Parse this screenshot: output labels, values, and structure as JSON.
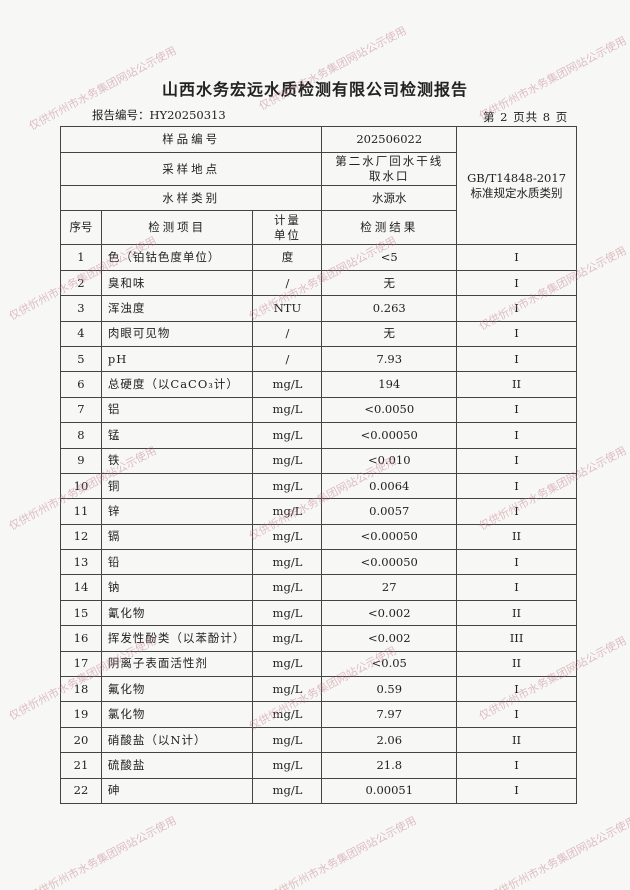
{
  "header": {
    "title": "山西水务宏远水质检测有限公司检测报告",
    "report_no": "报告编号：HY20250313",
    "page_info": "第 2 页共 8 页"
  },
  "table": {
    "sample_no_label": "样品编号",
    "sample_no": "202506022",
    "location_label": "采样地点",
    "location": "第二水厂回水干线取水口",
    "type_label": "水样类别",
    "type": "水源水",
    "standard": "GB/T14848-2017 标准规定水质类别",
    "col_no": "序号",
    "col_item": "检测项目",
    "col_unit": "计量单位",
    "col_result": "检测结果",
    "rows": [
      {
        "no": "1",
        "item": "色（铂钴色度单位）",
        "unit": "度",
        "result": "<5",
        "class": "I"
      },
      {
        "no": "2",
        "item": "臭和味",
        "unit": "/",
        "result": "无",
        "class": "I"
      },
      {
        "no": "3",
        "item": "浑浊度",
        "unit": "NTU",
        "result": "0.263",
        "class": "I"
      },
      {
        "no": "4",
        "item": "肉眼可见物",
        "unit": "/",
        "result": "无",
        "class": "I"
      },
      {
        "no": "5",
        "item": "pH",
        "unit": "/",
        "result": "7.93",
        "class": "I"
      },
      {
        "no": "6",
        "item": "总硬度（以CaCO₃计）",
        "unit": "mg/L",
        "result": "194",
        "class": "II"
      },
      {
        "no": "7",
        "item": "铝",
        "unit": "mg/L",
        "result": "<0.0050",
        "class": "I"
      },
      {
        "no": "8",
        "item": "锰",
        "unit": "mg/L",
        "result": "<0.00050",
        "class": "I"
      },
      {
        "no": "9",
        "item": "铁",
        "unit": "mg/L",
        "result": "<0.010",
        "class": "I"
      },
      {
        "no": "10",
        "item": "铜",
        "unit": "mg/L",
        "result": "0.0064",
        "class": "I"
      },
      {
        "no": "11",
        "item": "锌",
        "unit": "mg/L",
        "result": "0.0057",
        "class": "I"
      },
      {
        "no": "12",
        "item": "镉",
        "unit": "mg/L",
        "result": "<0.00050",
        "class": "II"
      },
      {
        "no": "13",
        "item": "铅",
        "unit": "mg/L",
        "result": "<0.00050",
        "class": "I"
      },
      {
        "no": "14",
        "item": "钠",
        "unit": "mg/L",
        "result": "27",
        "class": "I"
      },
      {
        "no": "15",
        "item": "氰化物",
        "unit": "mg/L",
        "result": "<0.002",
        "class": "II"
      },
      {
        "no": "16",
        "item": "挥发性酚类（以苯酚计）",
        "unit": "mg/L",
        "result": "<0.002",
        "class": "III"
      },
      {
        "no": "17",
        "item": "阴离子表面活性剂",
        "unit": "mg/L",
        "result": "<0.05",
        "class": "II"
      },
      {
        "no": "18",
        "item": "氟化物",
        "unit": "mg/L",
        "result": "0.59",
        "class": "I"
      },
      {
        "no": "19",
        "item": "氯化物",
        "unit": "mg/L",
        "result": "7.97",
        "class": "I"
      },
      {
        "no": "20",
        "item": "硝酸盐（以N计）",
        "unit": "mg/L",
        "result": "2.06",
        "class": "II"
      },
      {
        "no": "21",
        "item": "硫酸盐",
        "unit": "mg/L",
        "result": "21.8",
        "class": "I"
      },
      {
        "no": "22",
        "item": "砷",
        "unit": "mg/L",
        "result": "0.00051",
        "class": "I"
      }
    ]
  },
  "watermark": "仅供忻州市水务集团网站公示使用"
}
